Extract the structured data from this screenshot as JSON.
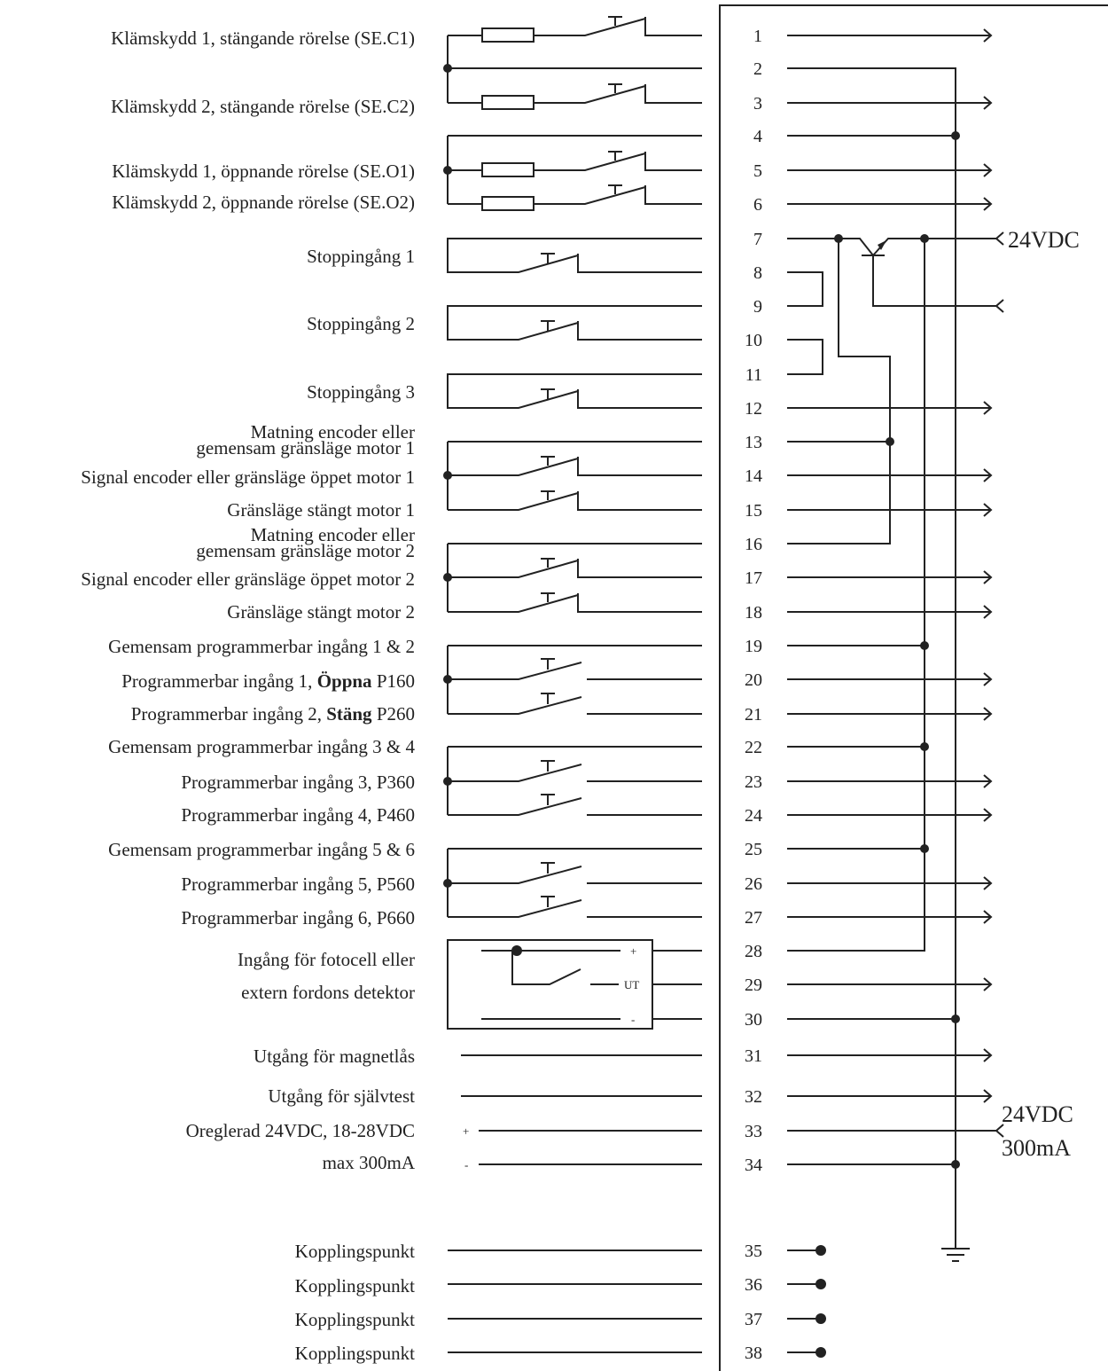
{
  "labels": {
    "se_c1": "Klämskydd 1, stängande rörelse (SE.C1)",
    "se_c2": "Klämskydd 2, stängande rörelse (SE.C2)",
    "se_o1": "Klämskydd 1, öppnande rörelse (SE.O1)",
    "se_o2": "Klämskydd 2, öppnande rörelse (SE.O2)",
    "stop1": "Stoppingång 1",
    "stop2": "Stoppingång 2",
    "stop3": "Stoppingång 3",
    "m1_supply_a": "Matning encoder eller",
    "m1_supply_b": "gemensam gränsläge motor 1",
    "m1_signal": "Signal encoder eller gränsläge öppet motor 1",
    "m1_closed": "Gränsläge stängt motor 1",
    "m2_supply_a": "Matning encoder eller",
    "m2_supply_b": "gemensam gränsläge motor 2",
    "m2_signal": "Signal encoder eller gränsläge öppet motor 2",
    "m2_closed": "Gränsläge stängt motor 2",
    "common12": "Gemensam programmerbar ingång 1 & 2",
    "in1_pre": "Programmerbar ingång 1, ",
    "in1_bold": "Öppna",
    "in1_post": " P160",
    "in2_pre": "Programmerbar ingång 2, ",
    "in2_bold": "Stäng",
    "in2_post": " P260",
    "common34": "Gemensam programmerbar ingång 3 & 4",
    "in3": "Programmerbar ingång 3, P360",
    "in4": "Programmerbar ingång 4, P460",
    "common56": "Gemensam programmerbar ingång 5 & 6",
    "in5": "Programmerbar ingång 5, P560",
    "in6": "Programmerbar ingång 6, P660",
    "photocell_a": "Ingång för fotocell eller",
    "photocell_b": "extern fordons detektor",
    "maglock": "Utgång för magnetlås",
    "selftest": "Utgång för självtest",
    "unreg_a": "Oreglerad 24VDC, 18-28VDC",
    "unreg_b": "max 300mA",
    "junction1": "Kopplingspunkt",
    "junction2": "Kopplingspunkt",
    "junction3": "Kopplingspunkt",
    "junction4": "Kopplingspunkt"
  },
  "photocell_pins": {
    "plus": "+",
    "out": "UT",
    "minus": "-"
  },
  "supply_pins": {
    "plus": "+",
    "minus": "-"
  },
  "supply_24vdc": "24VDC",
  "output_24vdc": "24VDC",
  "output_current": "300mA",
  "terminals": [
    "1",
    "2",
    "3",
    "4",
    "5",
    "6",
    "7",
    "8",
    "9",
    "10",
    "11",
    "12",
    "13",
    "14",
    "15",
    "16",
    "17",
    "18",
    "19",
    "20",
    "21",
    "22",
    "23",
    "24",
    "25",
    "26",
    "27",
    "28",
    "29",
    "30",
    "31",
    "32",
    "33",
    "34",
    "35",
    "36",
    "37",
    "38"
  ]
}
